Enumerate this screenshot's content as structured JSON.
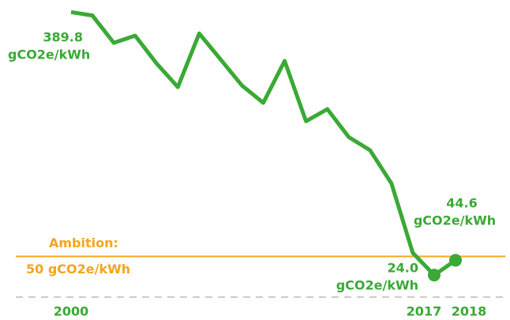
{
  "chart_data": {
    "type": "line",
    "categories": [
      "2000",
      null,
      null,
      null,
      null,
      null,
      null,
      null,
      null,
      null,
      null,
      null,
      null,
      null,
      null,
      null,
      null,
      "2017",
      "2018"
    ],
    "series": [
      {
        "color": "#3aa935",
        "values": [
          389.8,
          385,
          347,
          357,
          318.5,
          285.5,
          360,
          324,
          287.7,
          263.6,
          321.8,
          238,
          254.8,
          216,
          197.6,
          151.5,
          54.8,
          24.0,
          44.6
        ],
        "value_labels": [
          "389.8",
          null,
          null,
          null,
          null,
          null,
          null,
          null,
          null,
          null,
          null,
          null,
          null,
          null,
          null,
          null,
          null,
          "24.0",
          "44.6"
        ]
      }
    ],
    "unit_label": "gCO2e/kWh",
    "ambition": {
      "value": 50,
      "label": "Ambition:",
      "sublabel": "50 gCO2e/kWh",
      "color": "#f5a51c"
    },
    "ylim": [
      0,
      400
    ]
  }
}
